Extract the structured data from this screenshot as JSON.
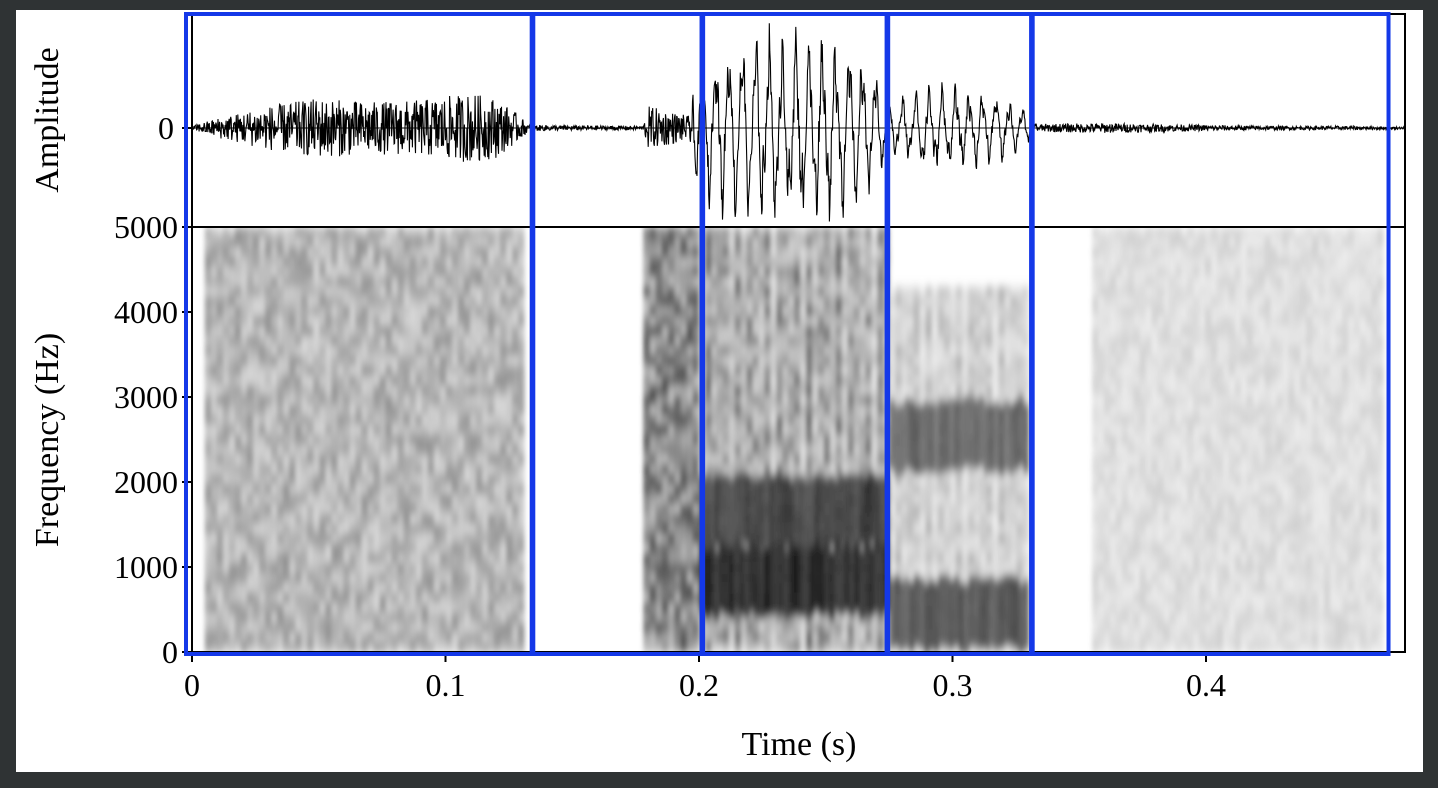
{
  "chart_data": [
    {
      "type": "line",
      "panel": "waveform",
      "ylabel": "Amplitude",
      "yticks": [
        "0"
      ],
      "xlim": [
        0,
        0.482
      ],
      "envelope": {
        "t": [
          0.0,
          0.01,
          0.03,
          0.05,
          0.07,
          0.09,
          0.11,
          0.12,
          0.128,
          0.133,
          0.178,
          0.18,
          0.19,
          0.196,
          0.2,
          0.21,
          0.23,
          0.25,
          0.265,
          0.272,
          0.276,
          0.29,
          0.3,
          0.31,
          0.32,
          0.328,
          0.333,
          0.36,
          0.38,
          0.4,
          0.43,
          0.46,
          0.482
        ],
        "amp": [
          0.02,
          0.1,
          0.22,
          0.3,
          0.26,
          0.28,
          0.35,
          0.3,
          0.15,
          0.03,
          0.02,
          0.22,
          0.16,
          0.12,
          0.65,
          0.85,
          0.95,
          0.9,
          0.75,
          0.4,
          0.25,
          0.42,
          0.4,
          0.36,
          0.32,
          0.2,
          0.04,
          0.05,
          0.04,
          0.03,
          0.02,
          0.02,
          0.01
        ]
      }
    },
    {
      "type": "heatmap",
      "panel": "spectrogram",
      "ylabel": "Frequency (Hz)",
      "xlabel": "Time (s)",
      "ylim": [
        0,
        5000
      ],
      "xlim": [
        0,
        0.482
      ],
      "yticks": [
        0,
        1000,
        2000,
        3000,
        4000,
        5000
      ],
      "xticks": [
        "0",
        "0.1",
        "0.2",
        "0.3",
        "0.4"
      ],
      "xtick_values": [
        0,
        0.1,
        0.2,
        0.3,
        0.4
      ],
      "regions": [
        {
          "t0": 0.005,
          "t1": 0.131,
          "f0": 0,
          "f1": 5000,
          "intensity": 0.55
        },
        {
          "t0": 0.178,
          "t1": 0.2,
          "f0": 0,
          "f1": 5000,
          "intensity": 0.75
        },
        {
          "t0": 0.2,
          "t1": 0.275,
          "f0": 0,
          "f1": 5000,
          "intensity": 0.7
        },
        {
          "t0": 0.275,
          "t1": 0.33,
          "f0": 0,
          "f1": 4300,
          "intensity": 0.45
        },
        {
          "t0": 0.355,
          "t1": 0.47,
          "f0": 0,
          "f1": 5000,
          "intensity": 0.3
        }
      ],
      "formants": [
        {
          "t0": 0.2,
          "t1": 0.275,
          "f": 900,
          "intensity": 0.95
        },
        {
          "t0": 0.2,
          "t1": 0.275,
          "f": 1700,
          "intensity": 0.7
        },
        {
          "t0": 0.275,
          "t1": 0.33,
          "f": 500,
          "intensity": 0.6
        },
        {
          "t0": 0.275,
          "t1": 0.33,
          "f": 2600,
          "intensity": 0.45
        }
      ]
    }
  ],
  "segments": [
    {
      "t0": 0.0,
      "t1": 0.134
    },
    {
      "t0": 0.137,
      "t1": 0.201
    },
    {
      "t0": 0.204,
      "t1": 0.274
    },
    {
      "t0": 0.277,
      "t1": 0.331
    },
    {
      "t0": 0.334,
      "t1": 0.472
    }
  ],
  "colors": {
    "segment_box": "#1438e8",
    "frame": "#000000",
    "background": "#2f3334"
  }
}
